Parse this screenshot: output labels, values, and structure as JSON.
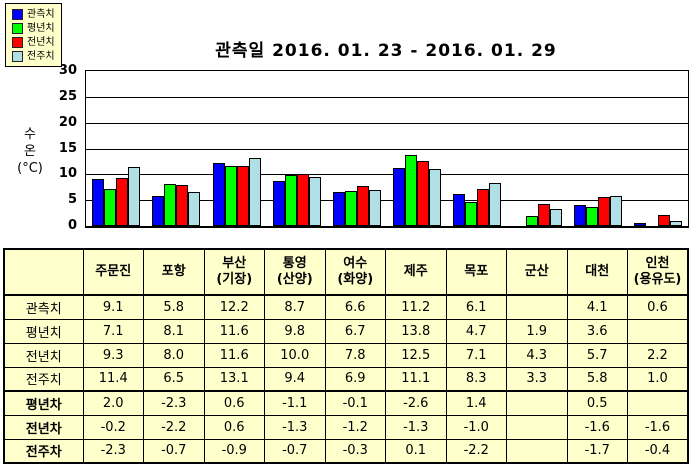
{
  "title": "관측일 2016. 01. 23 - 2016. 01. 29",
  "legend": [
    {
      "label": "관측치",
      "color": "#0000ff"
    },
    {
      "label": "평년치",
      "color": "#00ff00"
    },
    {
      "label": "전년치",
      "color": "#ff0000"
    },
    {
      "label": "전주치",
      "color": "#b0e0e6"
    }
  ],
  "chart_data": {
    "type": "bar",
    "title": "관측일 2016. 01. 23 - 2016. 01. 29",
    "ylabel": "수온(°C)",
    "ylabel_lines": [
      "수",
      "온",
      "(°C)"
    ],
    "ylim": [
      0,
      30
    ],
    "yticks": [
      0,
      5,
      10,
      15,
      20,
      25,
      30
    ],
    "grid": true,
    "legend_position": "top-left",
    "categories": [
      "주문진",
      "포항",
      "부산(기장)",
      "통영(산양)",
      "여수(화양)",
      "제주",
      "목포",
      "군산",
      "대천",
      "인천(용유도)"
    ],
    "series": [
      {
        "name": "관측치",
        "color": "#0000ff",
        "values": [
          9.1,
          5.8,
          12.2,
          8.7,
          6.6,
          11.2,
          6.1,
          null,
          4.1,
          0.6
        ]
      },
      {
        "name": "평년치",
        "color": "#00ff00",
        "values": [
          7.1,
          8.1,
          11.6,
          9.8,
          6.7,
          13.8,
          4.7,
          1.9,
          3.6,
          null
        ]
      },
      {
        "name": "전년치",
        "color": "#ff0000",
        "values": [
          9.3,
          8.0,
          11.6,
          10.0,
          7.8,
          12.5,
          7.1,
          4.3,
          5.7,
          2.2
        ]
      },
      {
        "name": "전주치",
        "color": "#b0e0e6",
        "values": [
          11.4,
          6.5,
          13.1,
          9.4,
          6.9,
          11.1,
          8.3,
          3.3,
          5.8,
          1.0
        ]
      }
    ]
  },
  "table": {
    "header": [
      "",
      "주문진",
      "포항",
      "부산\n(기장)",
      "통영\n(산양)",
      "여수\n(화양)",
      "제주",
      "목포",
      "군산",
      "대천",
      "인천\n(용유도)"
    ],
    "rows": [
      {
        "label": "관측치",
        "bold": false,
        "values": [
          "9.1",
          "5.8",
          "12.2",
          "8.7",
          "6.6",
          "11.2",
          "6.1",
          "",
          "4.1",
          "0.6"
        ]
      },
      {
        "label": "평년치",
        "bold": false,
        "values": [
          "7.1",
          "8.1",
          "11.6",
          "9.8",
          "6.7",
          "13.8",
          "4.7",
          "1.9",
          "3.6",
          ""
        ]
      },
      {
        "label": "전년치",
        "bold": false,
        "values": [
          "9.3",
          "8.0",
          "11.6",
          "10.0",
          "7.8",
          "12.5",
          "7.1",
          "4.3",
          "5.7",
          "2.2"
        ]
      },
      {
        "label": "전주치",
        "bold": false,
        "values": [
          "11.4",
          "6.5",
          "13.1",
          "9.4",
          "6.9",
          "11.1",
          "8.3",
          "3.3",
          "5.8",
          "1.0"
        ]
      },
      {
        "label": "평년차",
        "bold": true,
        "values": [
          "2.0",
          "-2.3",
          "0.6",
          "-1.1",
          "-0.1",
          "-2.6",
          "1.4",
          "",
          "0.5",
          ""
        ]
      },
      {
        "label": "전년차",
        "bold": true,
        "values": [
          "-0.2",
          "-2.2",
          "0.6",
          "-1.3",
          "-1.2",
          "-1.3",
          "-1.0",
          "",
          "-1.6",
          "-1.6"
        ]
      },
      {
        "label": "전주차",
        "bold": true,
        "values": [
          "-2.3",
          "-0.7",
          "-0.9",
          "-0.7",
          "-0.3",
          "0.1",
          "-2.2",
          "",
          "-1.7",
          "-0.4"
        ]
      }
    ]
  },
  "colors": {
    "panel_bg": "#ffffcc",
    "axis": "#000000",
    "text": "#000000"
  }
}
